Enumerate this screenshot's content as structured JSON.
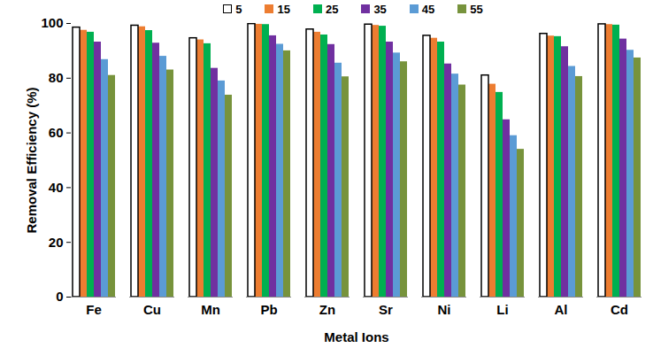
{
  "chart_data": {
    "type": "bar",
    "x_label": "Metal Ions",
    "y_label": "Removal Efficiency (%)",
    "categories": [
      "Fe",
      "Cu",
      "Mn",
      "Pb",
      "Zn",
      "Sr",
      "Ni",
      "Li",
      "Al",
      "Cd"
    ],
    "series": [
      {
        "name": "5",
        "color": "#ffffff",
        "values": [
          98.5,
          99.2,
          94.6,
          99.8,
          97.8,
          99.6,
          95.5,
          81.0,
          96.2,
          99.7
        ]
      },
      {
        "name": "15",
        "color": "#ed7d31",
        "values": [
          97.5,
          98.8,
          94.0,
          99.7,
          96.8,
          99.3,
          94.6,
          77.8,
          95.4,
          99.6
        ]
      },
      {
        "name": "25",
        "color": "#00b050",
        "values": [
          96.8,
          97.4,
          92.6,
          99.6,
          95.8,
          99.0,
          93.2,
          74.8,
          95.2,
          99.4
        ]
      },
      {
        "name": "35",
        "color": "#7030a0",
        "values": [
          93.2,
          92.8,
          83.6,
          95.5,
          92.3,
          93.2,
          85.2,
          64.8,
          91.5,
          94.3
        ]
      },
      {
        "name": "45",
        "color": "#5b9bd5",
        "values": [
          86.8,
          88.0,
          79.0,
          92.4,
          85.5,
          89.2,
          81.5,
          59.0,
          84.3,
          90.2
        ]
      },
      {
        "name": "55",
        "color": "#77933c",
        "values": [
          81.0,
          83.0,
          73.8,
          90.0,
          80.5,
          86.0,
          77.5,
          54.0,
          80.6,
          87.4
        ]
      }
    ],
    "ylim": [
      0,
      100
    ],
    "yticks": [
      0,
      20,
      40,
      60,
      80,
      100
    ],
    "grid": false,
    "legend": "top"
  }
}
